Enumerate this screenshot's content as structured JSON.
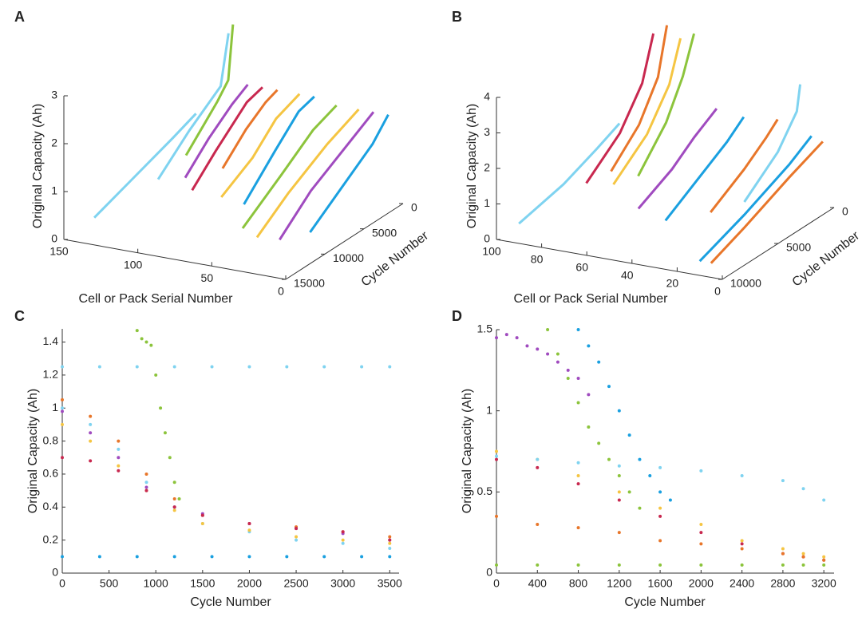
{
  "chart_data": [
    {
      "type": "line3d",
      "panel": "A",
      "zlabel": "Original Capacity (Ah)",
      "xlabel": "Cell or Pack Serial Number",
      "ylabel": "Cycle Number",
      "slim": [
        0,
        150
      ],
      "sticks": [
        0,
        50,
        100,
        150
      ],
      "xlim": [
        0,
        15000
      ],
      "xticks": [
        0,
        5000,
        10000,
        15000
      ],
      "zlim": [
        0,
        3
      ],
      "zticks": [
        0,
        1,
        2,
        3
      ],
      "series": [
        {
          "serial": 140,
          "color": "#7fd3f0",
          "x": [
            0,
            3000,
            8000,
            13000
          ],
          "values": [
            1.1,
            0.9,
            0.6,
            0.3
          ]
        },
        {
          "serial": 118,
          "color": "#7fd3f0",
          "x": [
            0,
            1000,
            5000,
            9000
          ],
          "values": [
            2.9,
            1.9,
            1.4,
            0.8
          ]
        },
        {
          "serial": 115,
          "color": "#8cc43c",
          "x": [
            0,
            600,
            2000,
            6000
          ],
          "values": [
            3.1,
            2.0,
            1.7,
            1.0
          ]
        },
        {
          "serial": 105,
          "color": "#a04bbf",
          "x": [
            0,
            2000,
            5000,
            8000
          ],
          "values": [
            1.9,
            1.7,
            1.3,
            0.8
          ]
        },
        {
          "serial": 95,
          "color": "#c8284f",
          "x": [
            0,
            2000,
            6000,
            9000
          ],
          "values": [
            1.9,
            1.8,
            1.2,
            0.7
          ]
        },
        {
          "serial": 85,
          "color": "#e8762a",
          "x": [
            0,
            1500,
            4000,
            7000
          ],
          "values": [
            1.9,
            1.8,
            1.5,
            1.0
          ]
        },
        {
          "serial": 70,
          "color": "#f5c542",
          "x": [
            0,
            3000,
            6000,
            10000
          ],
          "values": [
            1.9,
            1.7,
            1.2,
            0.8
          ]
        },
        {
          "serial": 60,
          "color": "#1aa0e0",
          "x": [
            0,
            2000,
            5000,
            9000
          ],
          "values": [
            1.9,
            1.8,
            1.3,
            0.6
          ]
        },
        {
          "serial": 45,
          "color": "#8cc43c",
          "x": [
            0,
            3000,
            7000,
            12000
          ],
          "values": [
            1.8,
            1.6,
            1.1,
            0.5
          ]
        },
        {
          "serial": 30,
          "color": "#f5c542",
          "x": [
            0,
            4000,
            9000,
            13000
          ],
          "values": [
            1.8,
            1.5,
            1.0,
            0.5
          ]
        },
        {
          "serial": 20,
          "color": "#a04bbf",
          "x": [
            0,
            3000,
            8000,
            12000
          ],
          "values": [
            1.8,
            1.5,
            1.0,
            0.4
          ]
        },
        {
          "serial": 10,
          "color": "#1aa0e0",
          "x": [
            0,
            2000,
            6000,
            10000
          ],
          "values": [
            1.8,
            1.4,
            0.9,
            0.4
          ]
        }
      ]
    },
    {
      "type": "line3d",
      "panel": "B",
      "zlabel": "Original Capacity (Ah)",
      "xlabel": "Cell or Pack Serial Number",
      "ylabel": "Cycle Number",
      "slim": [
        0,
        100
      ],
      "sticks": [
        0,
        20,
        40,
        60,
        80,
        100
      ],
      "xlim": [
        0,
        10000
      ],
      "xticks": [
        0,
        5000,
        10000
      ],
      "zlim": [
        0,
        4
      ],
      "zticks": [
        0,
        1,
        2,
        3,
        4
      ],
      "series": [
        {
          "serial": 95,
          "color": "#7fd3f0",
          "x": [
            0,
            2000,
            5000,
            9000
          ],
          "values": [
            1.3,
            1.0,
            0.6,
            0.3
          ]
        },
        {
          "serial": 80,
          "color": "#c8284f",
          "x": [
            0,
            1000,
            3000,
            6000
          ],
          "values": [
            4.0,
            2.8,
            1.8,
            1.0
          ]
        },
        {
          "serial": 74,
          "color": "#e8762a",
          "x": [
            0,
            800,
            2500,
            5000
          ],
          "values": [
            4.3,
            3.0,
            2.0,
            1.2
          ]
        },
        {
          "serial": 68,
          "color": "#f5c542",
          "x": [
            0,
            1000,
            3000,
            6000
          ],
          "values": [
            4.0,
            2.9,
            1.9,
            1.1
          ]
        },
        {
          "serial": 62,
          "color": "#8cc43c",
          "x": [
            0,
            1000,
            2500,
            5000
          ],
          "values": [
            4.2,
            3.2,
            2.2,
            1.2
          ]
        },
        {
          "serial": 52,
          "color": "#a04bbf",
          "x": [
            0,
            2000,
            4000,
            7000
          ],
          "values": [
            2.2,
            1.8,
            1.3,
            0.8
          ]
        },
        {
          "serial": 40,
          "color": "#1aa0e0",
          "x": [
            0,
            1500,
            4000,
            7000
          ],
          "values": [
            2.1,
            1.7,
            1.2,
            0.6
          ]
        },
        {
          "serial": 25,
          "color": "#e8762a",
          "x": [
            0,
            1000,
            3000,
            6000
          ],
          "values": [
            2.2,
            1.9,
            1.4,
            0.8
          ]
        },
        {
          "serial": 15,
          "color": "#7fd3f0",
          "x": [
            0,
            300,
            2000,
            5000
          ],
          "values": [
            3.3,
            2.6,
            1.8,
            1.0
          ]
        },
        {
          "serial": 10,
          "color": "#1aa0e0",
          "x": [
            0,
            2000,
            6000,
            10000
          ],
          "values": [
            1.9,
            1.5,
            0.9,
            0.4
          ]
        },
        {
          "serial": 5,
          "color": "#e8762a",
          "x": [
            0,
            3000,
            7000,
            10000
          ],
          "values": [
            1.8,
            1.4,
            0.8,
            0.4
          ]
        }
      ]
    },
    {
      "type": "scatter",
      "panel": "C",
      "ylabel": "Original Capacity (Ah)",
      "xlabel": "Cycle Number",
      "xlim": [
        0,
        3600
      ],
      "xticks": [
        0,
        500,
        1000,
        1500,
        2000,
        2500,
        3000,
        3500
      ],
      "ylim": [
        0,
        1.48
      ],
      "yticks": [
        0,
        0.2,
        0.4,
        0.6,
        0.8,
        1,
        1.2,
        1.4
      ],
      "series": [
        {
          "color": "#7fd3f0",
          "x": [
            0,
            300,
            600,
            900,
            1200,
            1500,
            2000,
            2500,
            3000,
            3500
          ],
          "values": [
            1.0,
            0.9,
            0.75,
            0.55,
            0.4,
            0.3,
            0.25,
            0.2,
            0.18,
            0.15
          ]
        },
        {
          "color": "#e8762a",
          "x": [
            0,
            300,
            600,
            900,
            1200,
            1500,
            2000,
            2500,
            3000,
            3500
          ],
          "values": [
            1.05,
            0.95,
            0.8,
            0.6,
            0.45,
            0.35,
            0.3,
            0.28,
            0.25,
            0.22
          ]
        },
        {
          "color": "#f5c542",
          "x": [
            0,
            300,
            600,
            900,
            1200,
            1500,
            2000,
            2500,
            3000,
            3500
          ],
          "values": [
            0.9,
            0.8,
            0.65,
            0.5,
            0.38,
            0.3,
            0.26,
            0.22,
            0.2,
            0.18
          ]
        },
        {
          "color": "#a04bbf",
          "x": [
            0,
            300,
            600,
            900,
            1200,
            1500,
            2000,
            2500,
            3000,
            3500
          ],
          "values": [
            0.98,
            0.85,
            0.7,
            0.52,
            0.4,
            0.36,
            0.3,
            0.27,
            0.24,
            0.2
          ]
        },
        {
          "color": "#8cc43c",
          "x": [
            800,
            850,
            900,
            950,
            1000,
            1050,
            1100,
            1150,
            1200,
            1250
          ],
          "values": [
            1.47,
            1.42,
            1.4,
            1.38,
            1.2,
            1.0,
            0.85,
            0.7,
            0.55,
            0.45
          ]
        },
        {
          "color": "#c8284f",
          "x": [
            0,
            300,
            600,
            900,
            1200,
            1500,
            2000,
            2500,
            3000,
            3500
          ],
          "values": [
            0.7,
            0.68,
            0.62,
            0.5,
            0.4,
            0.35,
            0.3,
            0.27,
            0.25,
            0.2
          ]
        },
        {
          "color": "#7fd3f0",
          "x": [
            0,
            400,
            800,
            1200,
            1600,
            2000,
            2400,
            2800,
            3200,
            3500
          ],
          "values": [
            1.25,
            1.25,
            1.25,
            1.25,
            1.25,
            1.25,
            1.25,
            1.25,
            1.25,
            1.25
          ]
        },
        {
          "color": "#1aa0e0",
          "x": [
            0,
            400,
            800,
            1200,
            1600,
            2000,
            2400,
            2800,
            3200,
            3500
          ],
          "values": [
            0.1,
            0.1,
            0.1,
            0.1,
            0.1,
            0.1,
            0.1,
            0.1,
            0.1,
            0.1
          ]
        }
      ]
    },
    {
      "type": "scatter",
      "panel": "D",
      "ylabel": "Original Capacity (Ah)",
      "xlabel": "Cycle Number",
      "xlim": [
        0,
        3300
      ],
      "xticks": [
        0,
        400,
        800,
        1200,
        1600,
        2000,
        2400,
        2800,
        3200
      ],
      "ylim": [
        0,
        1.5
      ],
      "yticks": [
        0,
        0.5,
        1,
        1.5
      ],
      "series": [
        {
          "color": "#a04bbf",
          "x": [
            0,
            100,
            200,
            300,
            400,
            500,
            600,
            700,
            800,
            900
          ],
          "values": [
            1.45,
            1.47,
            1.45,
            1.4,
            1.38,
            1.35,
            1.3,
            1.25,
            1.2,
            1.1
          ]
        },
        {
          "color": "#8cc43c",
          "x": [
            500,
            600,
            700,
            800,
            900,
            1000,
            1100,
            1200,
            1300,
            1400
          ],
          "values": [
            1.5,
            1.35,
            1.2,
            1.05,
            0.9,
            0.8,
            0.7,
            0.6,
            0.5,
            0.4
          ]
        },
        {
          "color": "#1aa0e0",
          "x": [
            800,
            900,
            1000,
            1100,
            1200,
            1300,
            1400,
            1500,
            1600,
            1700
          ],
          "values": [
            1.5,
            1.4,
            1.3,
            1.15,
            1.0,
            0.85,
            0.7,
            0.6,
            0.5,
            0.45
          ]
        },
        {
          "color": "#f5c542",
          "x": [
            0,
            400,
            800,
            1200,
            1600,
            2000,
            2400,
            2800,
            3000,
            3200
          ],
          "values": [
            0.75,
            0.7,
            0.6,
            0.5,
            0.4,
            0.3,
            0.2,
            0.15,
            0.12,
            0.1
          ]
        },
        {
          "color": "#c8284f",
          "x": [
            0,
            400,
            800,
            1200,
            1600,
            2000,
            2400,
            2800,
            3000,
            3200
          ],
          "values": [
            0.7,
            0.65,
            0.55,
            0.45,
            0.35,
            0.25,
            0.18,
            0.12,
            0.1,
            0.08
          ]
        },
        {
          "color": "#7fd3f0",
          "x": [
            0,
            400,
            800,
            1200,
            1600,
            2000,
            2400,
            2800,
            3000,
            3200
          ],
          "values": [
            0.72,
            0.7,
            0.68,
            0.66,
            0.65,
            0.63,
            0.6,
            0.57,
            0.52,
            0.45
          ]
        },
        {
          "color": "#e8762a",
          "x": [
            0,
            400,
            800,
            1200,
            1600,
            2000,
            2400,
            2800,
            3000,
            3200
          ],
          "values": [
            0.35,
            0.3,
            0.28,
            0.25,
            0.2,
            0.18,
            0.15,
            0.12,
            0.1,
            0.08
          ]
        },
        {
          "color": "#8cc43c",
          "x": [
            0,
            400,
            800,
            1200,
            1600,
            2000,
            2400,
            2800,
            3000,
            3200
          ],
          "values": [
            0.05,
            0.05,
            0.05,
            0.05,
            0.05,
            0.05,
            0.05,
            0.05,
            0.05,
            0.05
          ]
        }
      ]
    }
  ]
}
